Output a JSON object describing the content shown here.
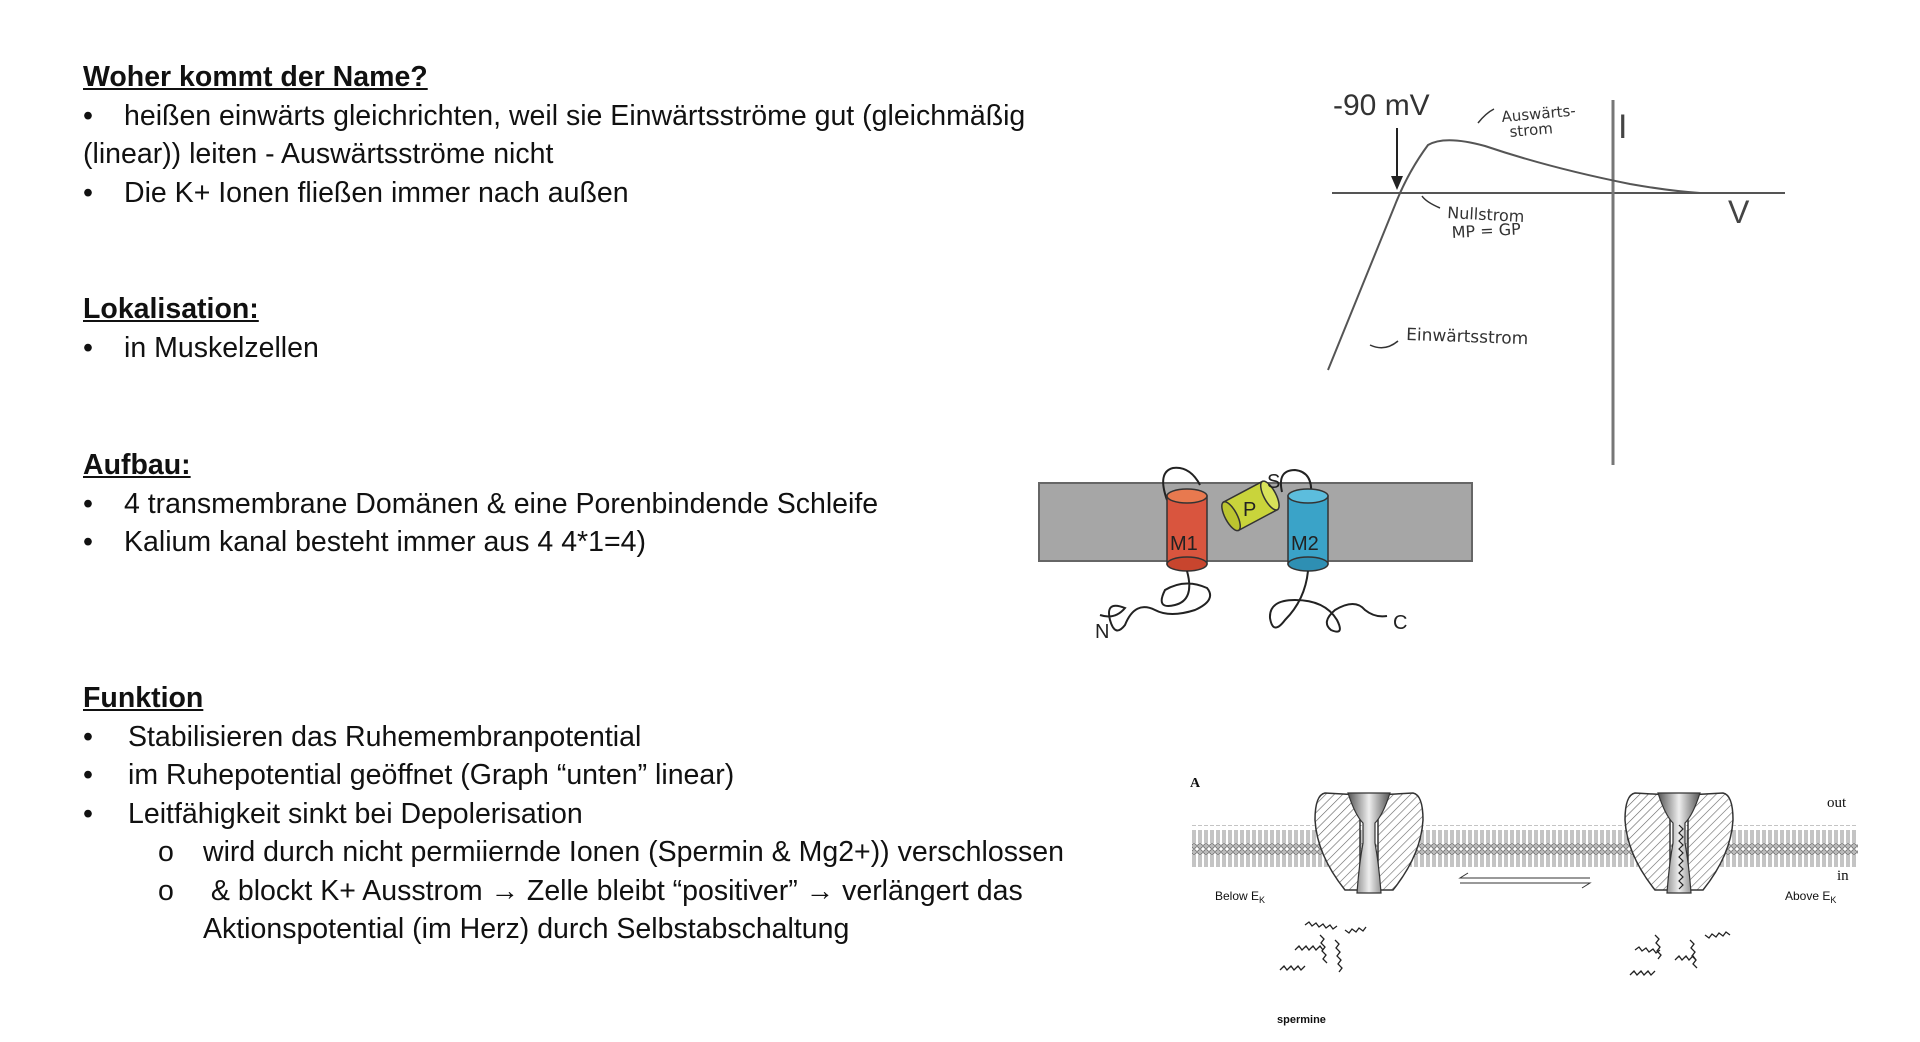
{
  "name_section": {
    "heading": "Woher kommt der Name?",
    "bullet1_line1": "heißen einwärts gleichrichten, weil sie Einwärtsströme gut (gleichmäßig",
    "bullet1_line2": "(linear)) leiten - Auswärtsströme nicht",
    "bullet2": "Die K+ Ionen fließen immer nach außen"
  },
  "localisation": {
    "heading": "Lokalisation:",
    "bullet1": "in Muskelzellen"
  },
  "structure": {
    "heading": "Aufbau:",
    "bullet1": "4 transmembrane Domänen & eine Porenbindende Schleife",
    "bullet2": "Kalium kanal besteht immer aus 4 4*1=4)"
  },
  "function": {
    "heading": "Funktion",
    "bullet1": "Stabilisieren das Ruhemembranpotential",
    "bullet2": "im Ruhepotential geöffnet (Graph “unten” linear)",
    "bullet3": "Leitfähigkeit sinkt bei Depolerisation",
    "sub1": "wird durch nicht permiiernde Ionen (Spermin & Mg2+)) verschlossen",
    "sub2_line1": " & blockt K+ Ausstrom → Zelle bleibt “positiver” → verlängert das",
    "sub2_line2": "Aktionspotential (im Herz) durch Selbstabschaltung"
  },
  "bullet_symbol": "•",
  "sub_bullet_symbol": "o",
  "iv_graph": {
    "voltage_label": "-90 mV",
    "y_axis": "I",
    "x_axis": "V",
    "outward_label_1": "Auswärts-",
    "outward_label_2": "strom",
    "zero_label_1": "Nullstrom",
    "zero_label_2": "MP = GP",
    "inward_label": "Einwärtsstrom"
  },
  "channel_topology": {
    "m1": "M1",
    "m2": "M2",
    "p": "P",
    "s": "S",
    "n": "N",
    "c": "C",
    "colors": {
      "m1": "#d9553e",
      "m2": "#3aa3c8",
      "p": "#c9d43b",
      "membrane": "#a6a6a6"
    }
  },
  "spermine_block": {
    "panel": "A",
    "out": "out",
    "in": "in",
    "below": "Below E",
    "above": "Above E",
    "subscript": "K",
    "spermine": "spermine"
  }
}
